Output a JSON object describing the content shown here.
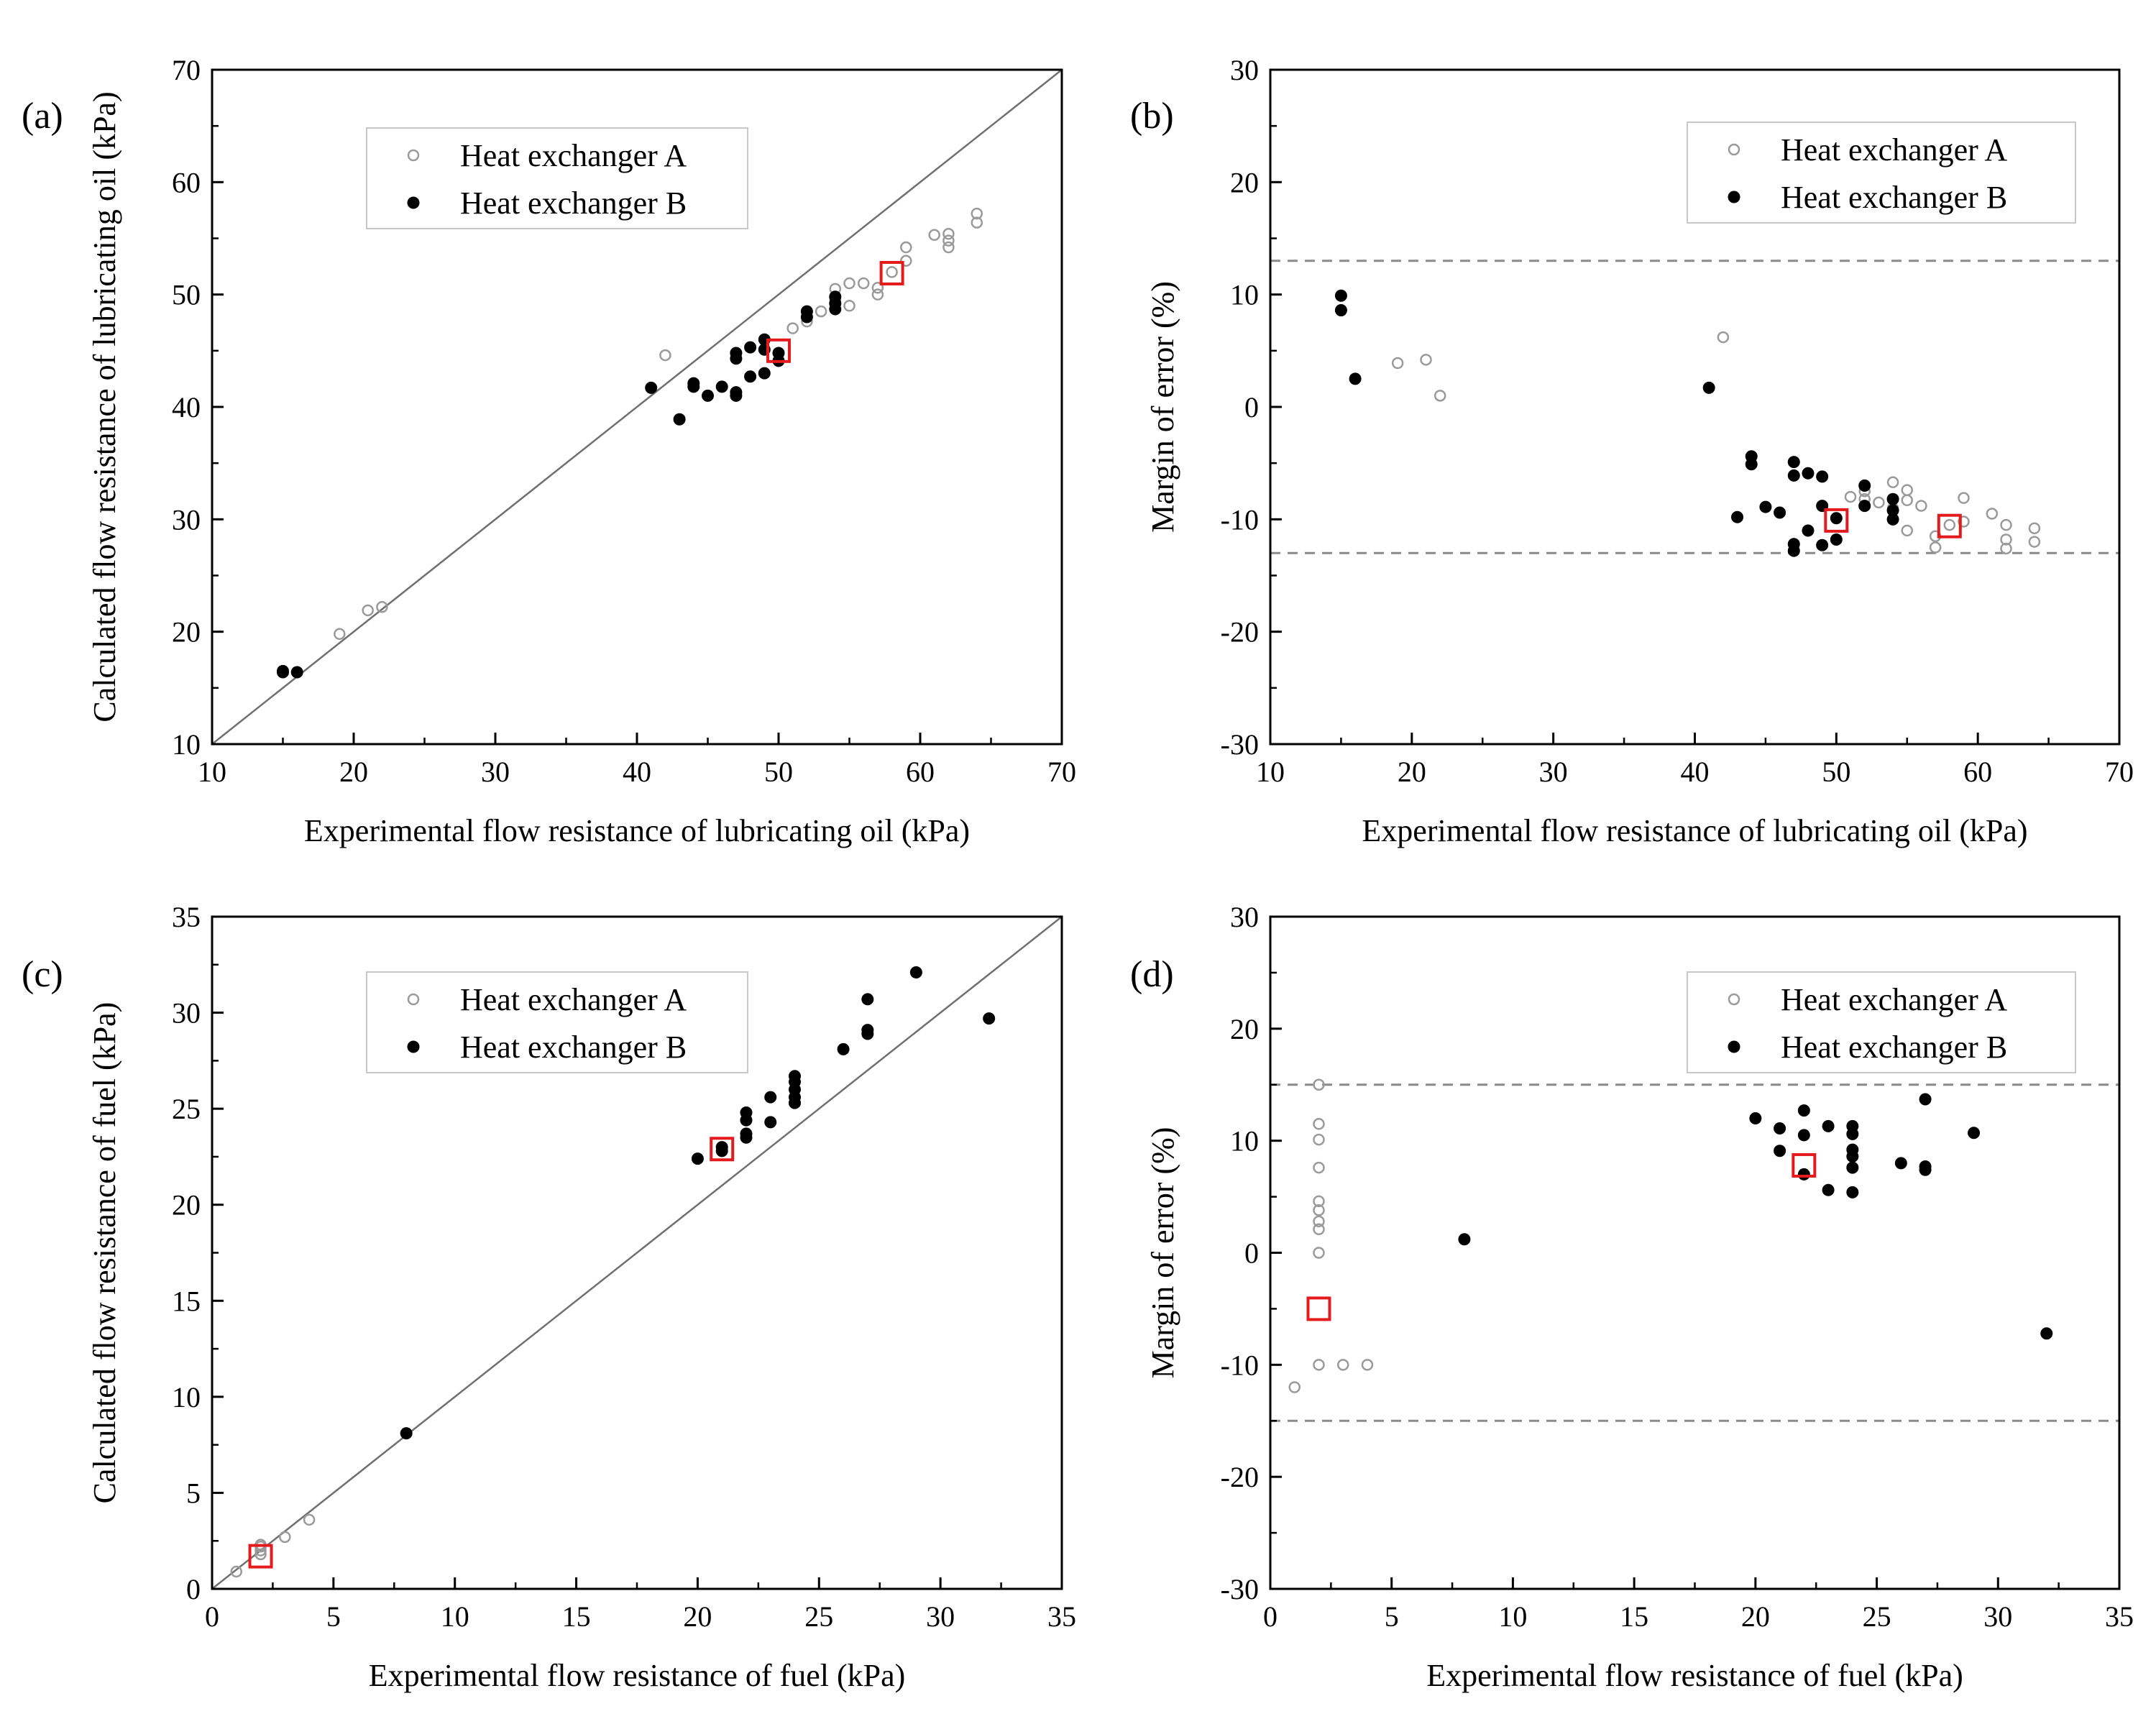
{
  "figure_domain": "Chart",
  "chart_data": [
    {
      "id": "a",
      "panel_label": "(a)",
      "type": "scatter",
      "xlabel": "Experimental flow resistance of lubricating oil (kPa)",
      "ylabel": "Calculated flow resistance of lubricating oil (kPa)",
      "xlim": [
        10,
        70
      ],
      "ylim": [
        10,
        70
      ],
      "xticks": [
        "10",
        "20",
        "30",
        "40",
        "50",
        "60",
        "70"
      ],
      "yticks": [
        "10",
        "20",
        "30",
        "40",
        "50",
        "60",
        "70"
      ],
      "reference_line": "y = x",
      "legend_position": "top-left",
      "series": [
        {
          "name": "Heat exchanger A",
          "marker": "open-circle",
          "points": [
            [
              19,
              19.8
            ],
            [
              21,
              21.9
            ],
            [
              22,
              22.2
            ],
            [
              42,
              44.6
            ],
            [
              51,
              47
            ],
            [
              52,
              47.6
            ],
            [
              52,
              48
            ],
            [
              53,
              48.5
            ],
            [
              54,
              49.5
            ],
            [
              54,
              50.5
            ],
            [
              55,
              49
            ],
            [
              55,
              51
            ],
            [
              56,
              51
            ],
            [
              57,
              50
            ],
            [
              57,
              50.6
            ],
            [
              58,
              52
            ],
            [
              59,
              53
            ],
            [
              59,
              54.2
            ],
            [
              61,
              55.3
            ],
            [
              62,
              54.2
            ],
            [
              62,
              54.8
            ],
            [
              62,
              55.4
            ],
            [
              64,
              56.4
            ],
            [
              64,
              57.2
            ]
          ]
        },
        {
          "name": "Heat exchanger B",
          "marker": "filled-circle",
          "points": [
            [
              15,
              16.5
            ],
            [
              15,
              16.4
            ],
            [
              16,
              16.4
            ],
            [
              41,
              41.7
            ],
            [
              43,
              38.9
            ],
            [
              44,
              41.8
            ],
            [
              44,
              42.1
            ],
            [
              45,
              41
            ],
            [
              46,
              41.8
            ],
            [
              47,
              41
            ],
            [
              47,
              41.3
            ],
            [
              47,
              44.3
            ],
            [
              47,
              44.8
            ],
            [
              48,
              42.7
            ],
            [
              48,
              45.3
            ],
            [
              49,
              43
            ],
            [
              49,
              45.1
            ],
            [
              49,
              46
            ],
            [
              50,
              44.1
            ],
            [
              50,
              44.8
            ],
            [
              52,
              48
            ],
            [
              52,
              48.5
            ],
            [
              54,
              48.7
            ],
            [
              54,
              49.2
            ],
            [
              54,
              49.8
            ]
          ]
        }
      ],
      "highlighted_points": [
        [
          50,
          45
        ],
        [
          58,
          51.9
        ]
      ]
    },
    {
      "id": "b",
      "panel_label": "(b)",
      "type": "scatter",
      "xlabel": "Experimental flow resistance of lubricating oil (kPa)",
      "ylabel": "Margin of error (%)",
      "xlim": [
        10,
        70
      ],
      "ylim": [
        -30,
        30
      ],
      "xticks": [
        "10",
        "20",
        "30",
        "40",
        "50",
        "60",
        "70"
      ],
      "yticks": [
        "-30",
        "-20",
        "-10",
        "0",
        "10",
        "20",
        "30"
      ],
      "dashed_lines": [
        13,
        -13
      ],
      "legend_position": "top-right",
      "series": [
        {
          "name": "Heat exchanger A",
          "marker": "open-circle",
          "points": [
            [
              19,
              3.9
            ],
            [
              21,
              4.2
            ],
            [
              22,
              1
            ],
            [
              42,
              6.2
            ],
            [
              51,
              -8
            ],
            [
              52,
              -7.5
            ],
            [
              52,
              -8.2
            ],
            [
              53,
              -8.5
            ],
            [
              54,
              -6.7
            ],
            [
              54,
              -9
            ],
            [
              55,
              -7.4
            ],
            [
              55,
              -8.3
            ],
            [
              55,
              -11
            ],
            [
              56,
              -8.8
            ],
            [
              57,
              -11.5
            ],
            [
              57,
              -12.5
            ],
            [
              58,
              -10.5
            ],
            [
              59,
              -8.1
            ],
            [
              59,
              -10.2
            ],
            [
              61,
              -9.5
            ],
            [
              62,
              -10.5
            ],
            [
              62,
              -11.8
            ],
            [
              62,
              -12.6
            ],
            [
              64,
              -10.8
            ],
            [
              64,
              -12
            ]
          ]
        },
        {
          "name": "Heat exchanger B",
          "marker": "filled-circle",
          "points": [
            [
              15,
              9.9
            ],
            [
              15,
              8.6
            ],
            [
              16,
              2.5
            ],
            [
              41,
              1.7
            ],
            [
              43,
              -9.8
            ],
            [
              44,
              -4.4
            ],
            [
              44,
              -5.1
            ],
            [
              45,
              -8.9
            ],
            [
              46,
              -9.4
            ],
            [
              47,
              -4.9
            ],
            [
              47,
              -6.1
            ],
            [
              47,
              -12.2
            ],
            [
              47,
              -12.8
            ],
            [
              48,
              -5.9
            ],
            [
              48,
              -11
            ],
            [
              49,
              -6.2
            ],
            [
              49,
              -8.8
            ],
            [
              49,
              -12.3
            ],
            [
              50,
              -9.9
            ],
            [
              50,
              -11.8
            ],
            [
              52,
              -7
            ],
            [
              52,
              -8.8
            ],
            [
              54,
              -8.2
            ],
            [
              54,
              -9.2
            ],
            [
              54,
              -10
            ]
          ]
        }
      ],
      "highlighted_points": [
        [
          50,
          -10.1
        ],
        [
          58,
          -10.6
        ]
      ]
    },
    {
      "id": "c",
      "panel_label": "(c)",
      "type": "scatter",
      "xlabel": "Experimental flow resistance of fuel (kPa)",
      "ylabel": "Calculated flow resistance of fuel (kPa)",
      "xlim": [
        0,
        35
      ],
      "ylim": [
        0,
        35
      ],
      "xticks": [
        "0",
        "5",
        "10",
        "15",
        "20",
        "25",
        "30",
        "35"
      ],
      "yticks": [
        "0",
        "5",
        "10",
        "15",
        "20",
        "25",
        "30",
        "35"
      ],
      "reference_line": "y = x",
      "legend_position": "top-left",
      "series": [
        {
          "name": "Heat exchanger A",
          "marker": "open-circle",
          "points": [
            [
              1,
              0.9
            ],
            [
              2,
              1.8
            ],
            [
              2,
              2
            ],
            [
              2,
              2.2
            ],
            [
              2,
              2.3
            ],
            [
              3,
              2.7
            ],
            [
              4,
              3.6
            ]
          ]
        },
        {
          "name": "Heat exchanger B",
          "marker": "filled-circle",
          "points": [
            [
              8,
              8.1
            ],
            [
              20,
              22.4
            ],
            [
              21,
              22.8
            ],
            [
              21,
              23
            ],
            [
              22,
              23.5
            ],
            [
              22,
              23.7
            ],
            [
              22,
              24.4
            ],
            [
              22,
              24.8
            ],
            [
              23,
              24.3
            ],
            [
              23,
              25.6
            ],
            [
              24,
              25.3
            ],
            [
              24,
              25.6
            ],
            [
              24,
              26
            ],
            [
              24,
              26.4
            ],
            [
              24,
              26.7
            ],
            [
              26,
              28.1
            ],
            [
              27,
              28.9
            ],
            [
              27,
              29.1
            ],
            [
              27,
              30.7
            ],
            [
              29,
              32.1
            ],
            [
              32,
              29.7
            ]
          ]
        }
      ],
      "highlighted_points": [
        [
          2,
          1.7
        ],
        [
          21,
          22.9
        ]
      ]
    },
    {
      "id": "d",
      "panel_label": "(d)",
      "type": "scatter",
      "xlabel": "Experimental flow resistance of fuel (kPa)",
      "ylabel": "Margin of error (%)",
      "xlim": [
        0,
        35
      ],
      "ylim": [
        -30,
        30
      ],
      "xticks": [
        "0",
        "5",
        "10",
        "15",
        "20",
        "25",
        "30",
        "35"
      ],
      "yticks": [
        "-30",
        "-20",
        "-10",
        "0",
        "10",
        "20",
        "30"
      ],
      "dashed_lines": [
        15,
        -15
      ],
      "legend_position": "top-right",
      "series": [
        {
          "name": "Heat exchanger A",
          "marker": "open-circle",
          "points": [
            [
              1,
              -12
            ],
            [
              2,
              15
            ],
            [
              2,
              11.5
            ],
            [
              2,
              10.1
            ],
            [
              2,
              7.6
            ],
            [
              2,
              4.6
            ],
            [
              2,
              3.8
            ],
            [
              2,
              2.8
            ],
            [
              2,
              2.1
            ],
            [
              2,
              0
            ],
            [
              2,
              -10
            ],
            [
              3,
              -10
            ],
            [
              4,
              -10
            ]
          ]
        },
        {
          "name": "Heat exchanger B",
          "marker": "filled-circle",
          "points": [
            [
              8,
              1.2
            ],
            [
              20,
              12
            ],
            [
              21,
              9.1
            ],
            [
              21,
              11.1
            ],
            [
              22,
              7
            ],
            [
              22,
              10.5
            ],
            [
              22,
              12.7
            ],
            [
              23,
              5.6
            ],
            [
              23,
              11.3
            ],
            [
              24,
              5.4
            ],
            [
              24,
              7.6
            ],
            [
              24,
              8.6
            ],
            [
              24,
              9.2
            ],
            [
              24,
              10.6
            ],
            [
              24,
              11.3
            ],
            [
              26,
              8
            ],
            [
              27,
              7.4
            ],
            [
              27,
              7.7
            ],
            [
              27,
              13.7
            ],
            [
              29,
              10.7
            ],
            [
              32,
              -7.2
            ]
          ]
        }
      ],
      "highlighted_points": [
        [
          2,
          -5
        ],
        [
          22,
          7.8
        ]
      ]
    }
  ],
  "colors": {
    "axis": "#000000",
    "reference_line": "#707070",
    "dashed_line": "#8a8a8a",
    "open_marker": "#9a9a9a",
    "filled_marker": "#000000",
    "highlight_box": "#e41a1c",
    "legend_border": "#c8c8c8"
  }
}
